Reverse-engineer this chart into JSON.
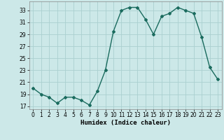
{
  "x": [
    0,
    1,
    2,
    3,
    4,
    5,
    6,
    7,
    8,
    9,
    10,
    11,
    12,
    13,
    14,
    15,
    16,
    17,
    18,
    19,
    20,
    21,
    22,
    23
  ],
  "y": [
    20.0,
    19.0,
    18.5,
    17.5,
    18.5,
    18.5,
    18.0,
    17.2,
    19.5,
    23.0,
    29.5,
    33.0,
    33.5,
    33.5,
    31.5,
    29.0,
    32.0,
    32.5,
    33.5,
    33.0,
    32.5,
    28.5,
    23.5,
    21.5
  ],
  "line_color": "#1a6b5e",
  "marker": "D",
  "markersize": 2.0,
  "bg_color": "#cce8e8",
  "grid_color": "#aad0d0",
  "xlabel": "Humidex (Indice chaleur)",
  "xlim": [
    -0.5,
    23.5
  ],
  "ylim": [
    16.5,
    34.5
  ],
  "yticks": [
    17,
    19,
    21,
    23,
    25,
    27,
    29,
    31,
    33
  ],
  "xticks": [
    0,
    1,
    2,
    3,
    4,
    5,
    6,
    7,
    8,
    9,
    10,
    11,
    12,
    13,
    14,
    15,
    16,
    17,
    18,
    19,
    20,
    21,
    22,
    23
  ],
  "xlabel_fontsize": 6.5,
  "tick_fontsize": 5.5,
  "linewidth": 1.0
}
